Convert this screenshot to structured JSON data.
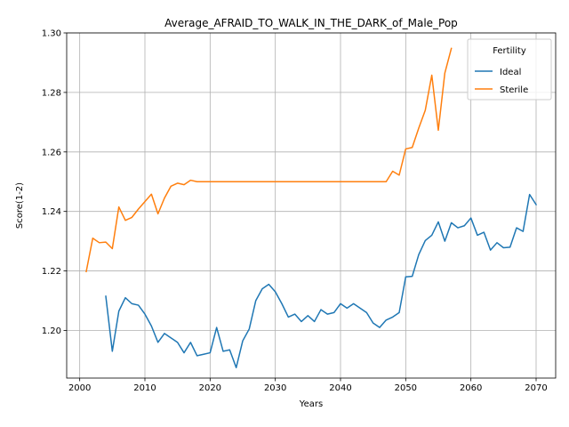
{
  "chart_data": {
    "type": "line",
    "title": "Average_AFRAID_TO_WALK_IN_THE_DARK_of_Male_Pop",
    "xlabel": "Years",
    "ylabel": "Score(1-2)",
    "xlim": [
      1998,
      2073
    ],
    "ylim": [
      1.184,
      1.3
    ],
    "xticks": [
      2000,
      2010,
      2020,
      2030,
      2040,
      2050,
      2060,
      2070
    ],
    "yticks": [
      1.2,
      1.22,
      1.24,
      1.26,
      1.28,
      1.3
    ],
    "ytick_labels": [
      "1.20",
      "1.22",
      "1.24",
      "1.26",
      "1.28",
      "1.30"
    ],
    "grid": true,
    "legend": {
      "title": "Fertility",
      "placement": "top-right"
    },
    "series": [
      {
        "name": "Ideal",
        "color": "#1f77b4",
        "x": [
          2004,
          2005,
          2006,
          2007,
          2008,
          2009,
          2010,
          2011,
          2012,
          2013,
          2014,
          2015,
          2016,
          2017,
          2018,
          2019,
          2020,
          2021,
          2022,
          2023,
          2024,
          2025,
          2026,
          2027,
          2028,
          2029,
          2030,
          2031,
          2032,
          2033,
          2034,
          2035,
          2036,
          2037,
          2038,
          2039,
          2040,
          2041,
          2042,
          2043,
          2044,
          2045,
          2046,
          2047,
          2048,
          2049,
          2050,
          2051,
          2052,
          2053,
          2054,
          2055,
          2056,
          2057,
          2058,
          2059,
          2060,
          2061,
          2062,
          2063,
          2064,
          2065,
          2066,
          2067,
          2068,
          2069,
          2070
        ],
        "values": [
          1.2115,
          1.193,
          1.2065,
          1.211,
          1.209,
          1.2085,
          1.2055,
          1.2015,
          1.196,
          1.199,
          1.1975,
          1.196,
          1.1925,
          1.196,
          1.1915,
          1.192,
          1.1925,
          1.201,
          1.193,
          1.1935,
          1.1875,
          1.1965,
          1.2005,
          1.21,
          1.214,
          1.2155,
          1.213,
          1.209,
          1.2045,
          1.2055,
          1.203,
          1.205,
          1.203,
          1.207,
          1.2055,
          1.206,
          1.209,
          1.2075,
          1.209,
          1.2075,
          1.206,
          1.2025,
          1.201,
          1.2035,
          1.2045,
          1.206,
          1.218,
          1.2182,
          1.2255,
          1.2302,
          1.232,
          1.2365,
          1.23,
          1.2362,
          1.2345,
          1.2352,
          1.2378,
          1.232,
          1.233,
          1.227,
          1.2295,
          1.2278,
          1.228,
          1.2345,
          1.2333,
          1.2457,
          1.2423
        ]
      },
      {
        "name": "Sterile",
        "color": "#ff7f0e",
        "x": [
          2001,
          2002,
          2003,
          2004,
          2005,
          2006,
          2007,
          2008,
          2009,
          2010,
          2011,
          2012,
          2013,
          2014,
          2015,
          2016,
          2017,
          2018,
          2019,
          2020,
          2025,
          2030,
          2035,
          2040,
          2045,
          2047,
          2048,
          2049,
          2050,
          2051,
          2052,
          2053,
          2054,
          2055,
          2056,
          2057
        ],
        "values": [
          1.2198,
          1.231,
          1.2295,
          1.2297,
          1.2275,
          1.2415,
          1.237,
          1.238,
          1.2408,
          1.2433,
          1.2458,
          1.2392,
          1.2445,
          1.2485,
          1.2495,
          1.249,
          1.2505,
          1.25,
          1.25,
          1.25,
          1.25,
          1.25,
          1.25,
          1.25,
          1.25,
          1.25,
          1.2535,
          1.2522,
          1.261,
          1.2615,
          1.268,
          1.274,
          1.2858,
          1.2673,
          1.2865,
          1.2948
        ]
      }
    ]
  }
}
